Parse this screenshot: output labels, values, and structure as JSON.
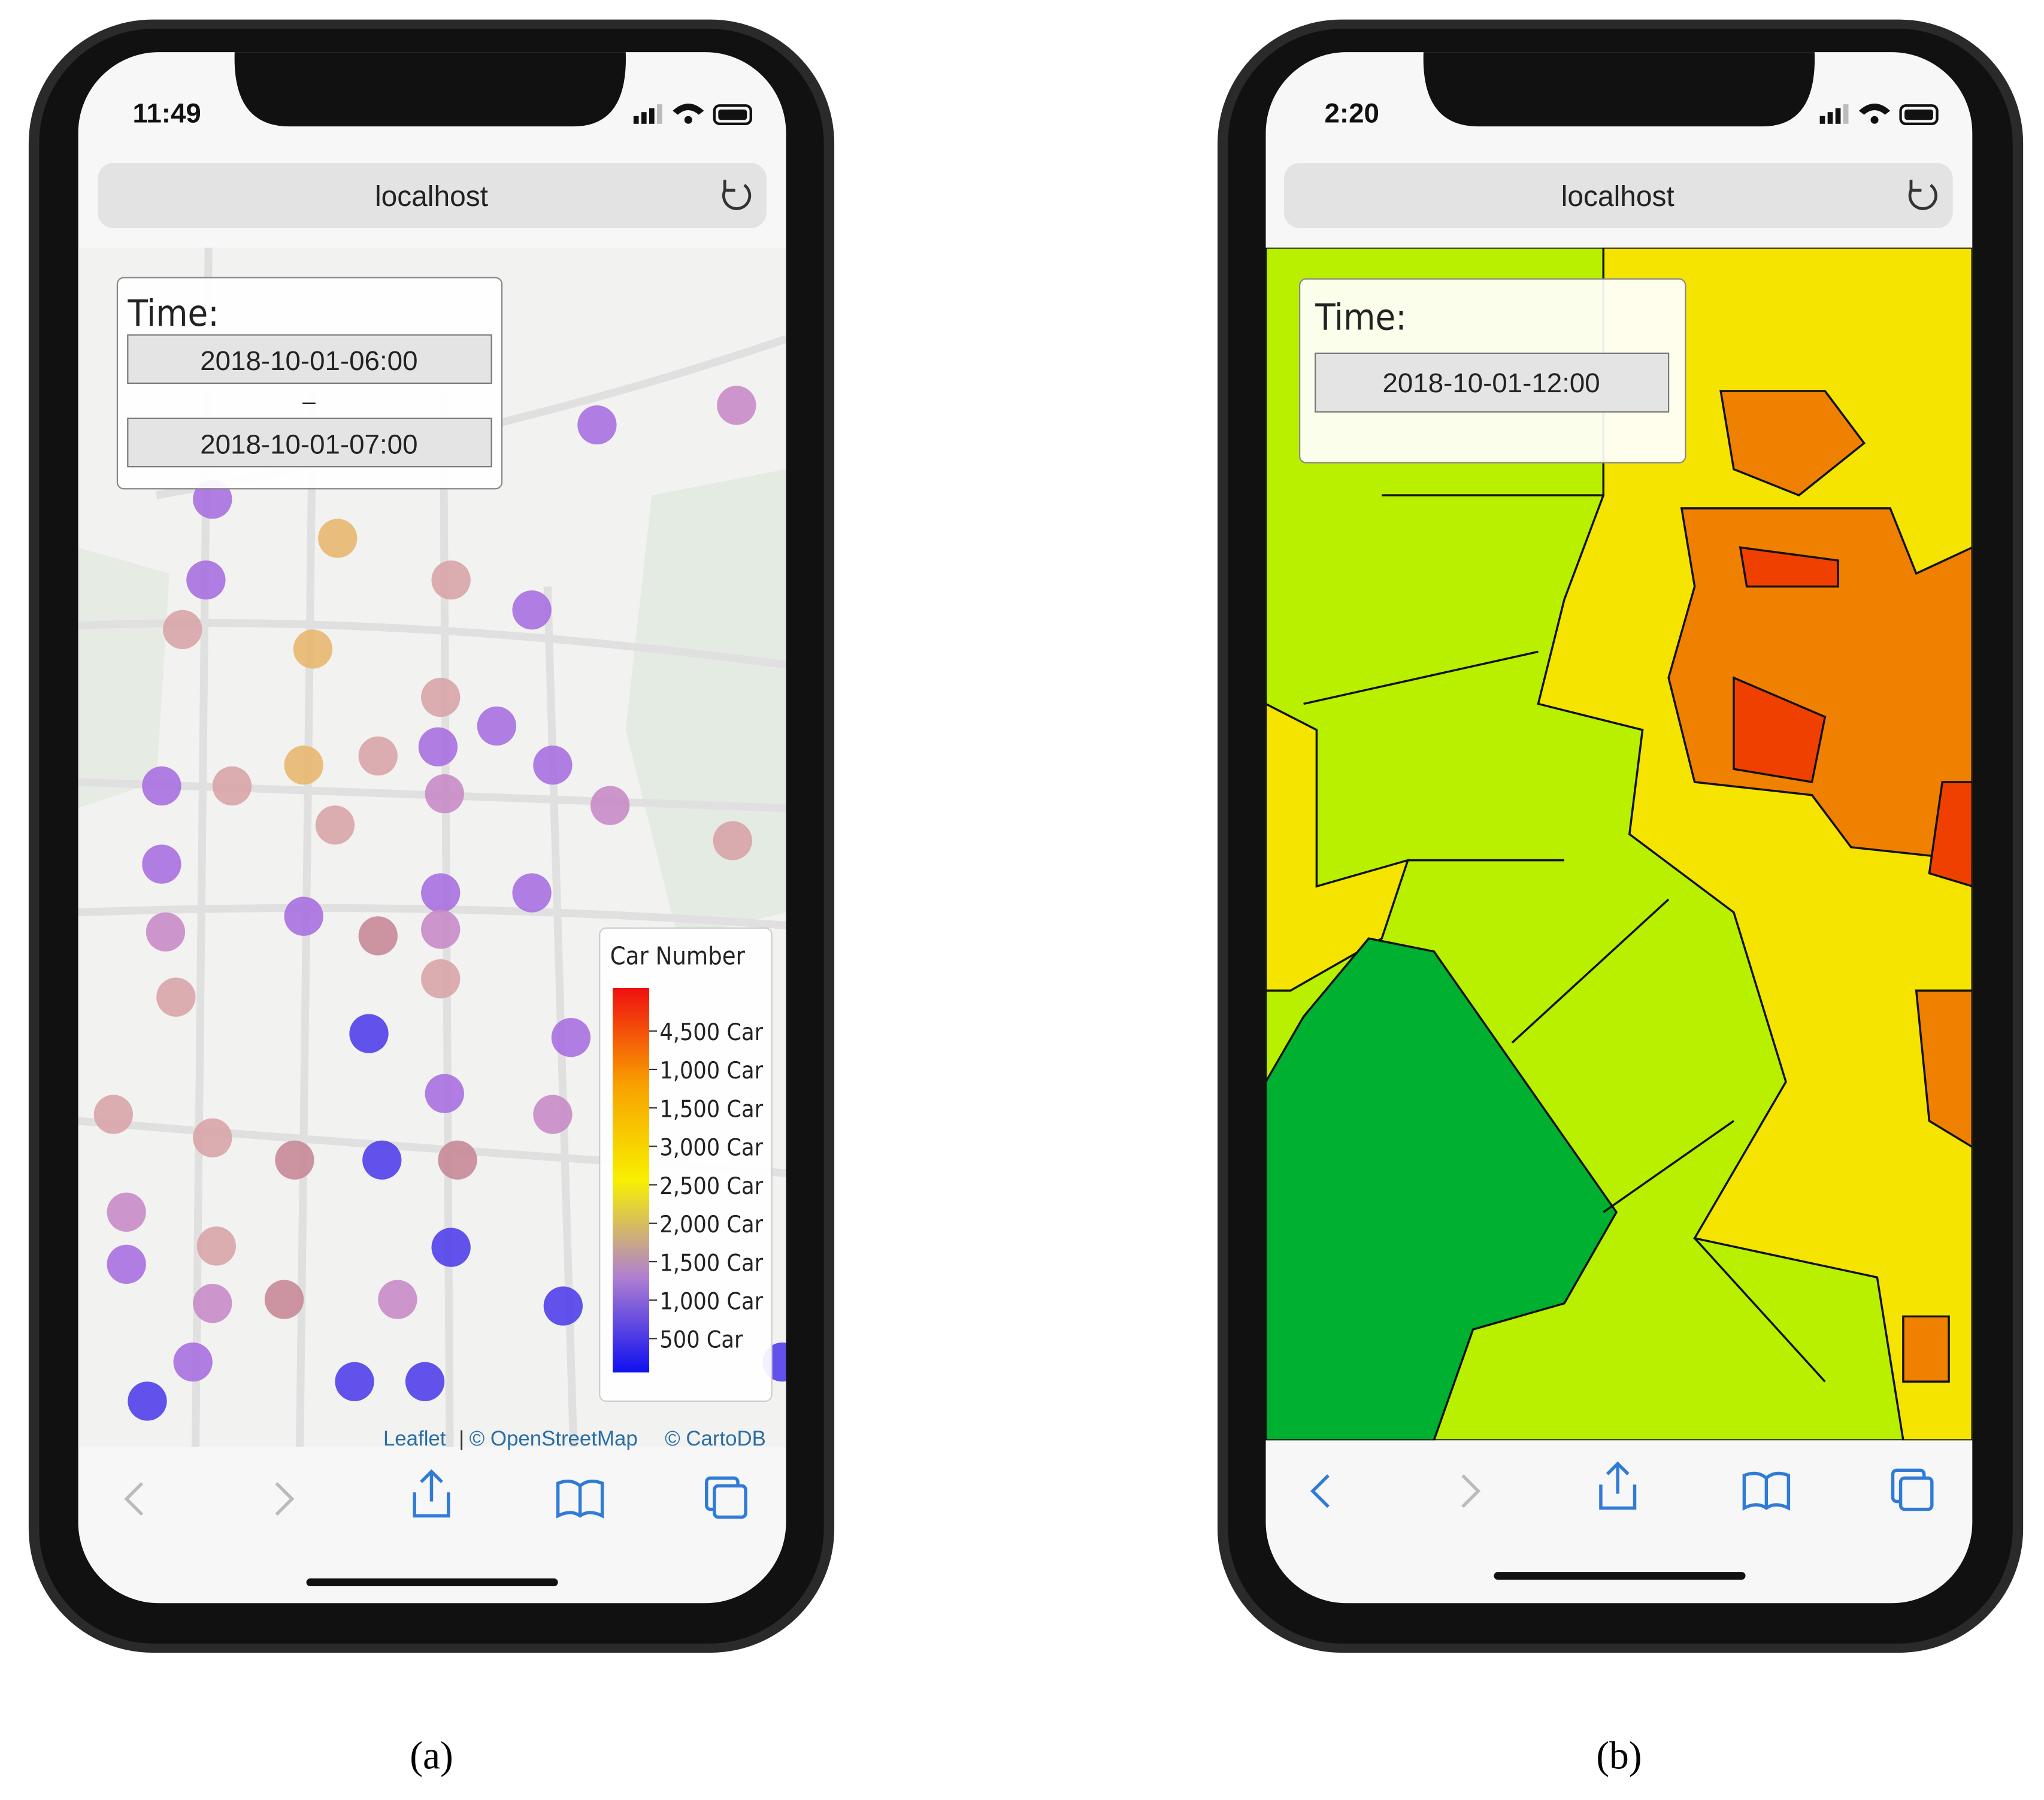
{
  "left_phone": {
    "status_time": "11:49",
    "url": "localhost",
    "time_panel": {
      "title": "Time:",
      "start": "2018-10-01-06:00",
      "separator": "–",
      "end": "2018-10-01-07:00"
    },
    "legend": {
      "title": "Car Number",
      "labels": [
        "4,500 Car",
        "1,000 Car",
        "1,500 Car",
        "3,000 Car",
        "2,500 Car",
        "2,000 Car",
        "1,500 Car",
        "1,000 Car",
        "500 Car"
      ]
    },
    "attribution": {
      "leaflet": "Leaflet",
      "separator": "|",
      "osm": "© OpenStreetMap",
      "carto": "© CartoDB"
    },
    "caption": "(a)"
  },
  "right_phone": {
    "status_time": "2:20",
    "url": "localhost",
    "time_panel": {
      "title": "Time:",
      "time": "2018-10-01-12:00"
    },
    "caption": "(b)"
  }
}
